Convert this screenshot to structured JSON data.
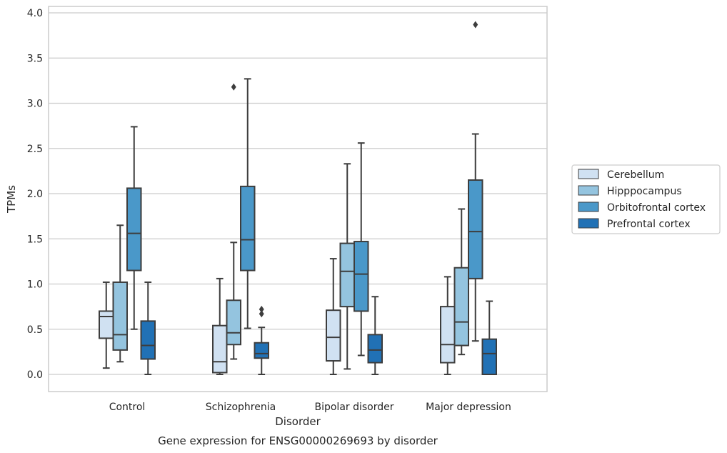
{
  "caption": "Gene expression for ENSG00000269693 by disorder",
  "chart_data": {
    "type": "boxplot",
    "xlabel": "Disorder",
    "ylabel": "TPMs",
    "ylim": [
      -0.18,
      4.07
    ],
    "yticks": [
      "0.0",
      "0.5",
      "1.0",
      "1.5",
      "2.0",
      "2.5",
      "3.0",
      "3.5",
      "4.0"
    ],
    "yticks_values": [
      0,
      0.5,
      1.0,
      1.5,
      2.0,
      2.5,
      3.0,
      3.5,
      4.0
    ],
    "grid": "horizontal",
    "legend_position": "right",
    "categories": [
      "Control",
      "Schizophrenia",
      "Bipolar disorder",
      "Major depression"
    ],
    "series": [
      {
        "name": "Cerebellum",
        "color": "#d0e1f2",
        "boxes": [
          {
            "whisker_low": 0.07,
            "q1": 0.4,
            "median": 0.64,
            "q3": 0.7,
            "whisker_high": 1.02,
            "outliers": []
          },
          {
            "whisker_low": 0.0,
            "q1": 0.02,
            "median": 0.14,
            "q3": 0.54,
            "whisker_high": 1.06,
            "outliers": []
          },
          {
            "whisker_low": 0.0,
            "q1": 0.15,
            "median": 0.41,
            "q3": 0.71,
            "whisker_high": 1.28,
            "outliers": []
          },
          {
            "whisker_low": 0.0,
            "q1": 0.13,
            "median": 0.33,
            "q3": 0.75,
            "whisker_high": 1.08,
            "outliers": []
          }
        ]
      },
      {
        "name": "Hipppocampus",
        "color": "#94c4df",
        "boxes": [
          {
            "whisker_low": 0.14,
            "q1": 0.27,
            "median": 0.44,
            "q3": 1.02,
            "whisker_high": 1.65,
            "outliers": []
          },
          {
            "whisker_low": 0.17,
            "q1": 0.33,
            "median": 0.46,
            "q3": 0.82,
            "whisker_high": 1.46,
            "outliers": [
              3.18
            ]
          },
          {
            "whisker_low": 0.06,
            "q1": 0.75,
            "median": 1.14,
            "q3": 1.45,
            "whisker_high": 2.33,
            "outliers": []
          },
          {
            "whisker_low": 0.22,
            "q1": 0.32,
            "median": 0.58,
            "q3": 1.18,
            "whisker_high": 1.83,
            "outliers": []
          }
        ]
      },
      {
        "name": "Orbitofrontal cortex",
        "color": "#4a98c9",
        "boxes": [
          {
            "whisker_low": 0.5,
            "q1": 1.15,
            "median": 1.56,
            "q3": 2.06,
            "whisker_high": 2.74,
            "outliers": []
          },
          {
            "whisker_low": 0.51,
            "q1": 1.15,
            "median": 1.49,
            "q3": 2.08,
            "whisker_high": 3.27,
            "outliers": []
          },
          {
            "whisker_low": 0.21,
            "q1": 0.7,
            "median": 1.11,
            "q3": 1.47,
            "whisker_high": 2.56,
            "outliers": []
          },
          {
            "whisker_low": 0.37,
            "q1": 1.06,
            "median": 1.58,
            "q3": 2.15,
            "whisker_high": 2.66,
            "outliers": [
              3.87
            ]
          }
        ]
      },
      {
        "name": "Prefrontal cortex",
        "color": "#2171b5",
        "boxes": [
          {
            "whisker_low": 0.0,
            "q1": 0.17,
            "median": 0.32,
            "q3": 0.59,
            "whisker_high": 1.02,
            "outliers": []
          },
          {
            "whisker_low": 0.0,
            "q1": 0.18,
            "median": 0.23,
            "q3": 0.35,
            "whisker_high": 0.52,
            "outliers": [
              0.67,
              0.72
            ]
          },
          {
            "whisker_low": 0.0,
            "q1": 0.13,
            "median": 0.27,
            "q3": 0.44,
            "whisker_high": 0.86,
            "outliers": []
          },
          {
            "whisker_low": 0.0,
            "q1": 0.0,
            "median": 0.23,
            "q3": 0.39,
            "whisker_high": 0.81,
            "outliers": []
          }
        ]
      }
    ]
  }
}
